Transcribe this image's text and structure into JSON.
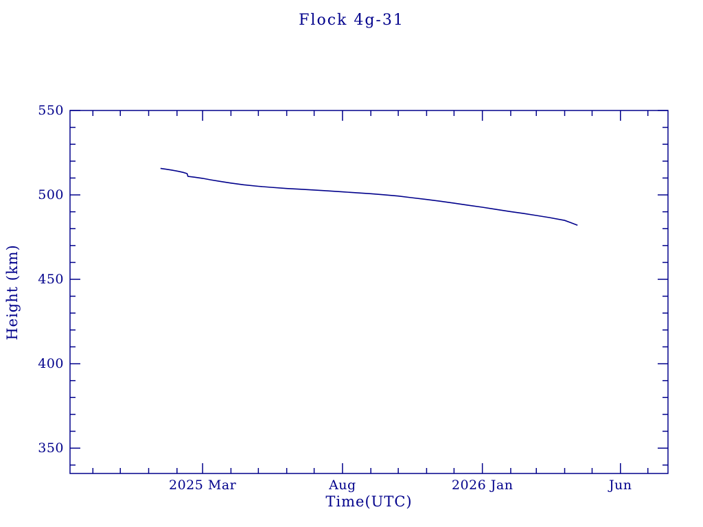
{
  "window": {
    "background_color": "#ffffff"
  },
  "chart_data": {
    "type": "line",
    "title": "Flock 4g-31",
    "xlabel": "Time(UTC)",
    "ylabel": "Height (km)",
    "line_color": "#00008b",
    "axis_color": "#00008b",
    "grid": false,
    "legend": null,
    "x_range": [
      "2024-10-07",
      "2026-07-23"
    ],
    "ylim": [
      335,
      550
    ],
    "y_major_ticks": [
      550,
      500,
      450,
      400,
      350
    ],
    "y_minor_step": 10,
    "x_major_ticks": [
      {
        "date": "2025-03-01",
        "label": "2025 Mar"
      },
      {
        "date": "2025-08-01",
        "label": "Aug"
      },
      {
        "date": "2026-01-01",
        "label": "2026 Jan"
      },
      {
        "date": "2026-06-01",
        "label": "Jun"
      }
    ],
    "x_minor_ticks": "monthly",
    "series": [
      {
        "name": "Flock 4g-31 height",
        "points": [
          [
            "2025-01-14",
            515.7
          ],
          [
            "2025-01-20",
            515.2
          ],
          [
            "2025-01-27",
            514.6
          ],
          [
            "2025-02-03",
            513.9
          ],
          [
            "2025-02-08",
            513.3
          ],
          [
            "2025-02-12",
            512.6
          ],
          [
            "2025-02-13",
            511.0
          ],
          [
            "2025-02-20",
            510.5
          ],
          [
            "2025-03-01",
            509.8
          ],
          [
            "2025-03-10",
            508.9
          ],
          [
            "2025-03-20",
            508.0
          ],
          [
            "2025-04-01",
            507.0
          ],
          [
            "2025-04-15",
            506.0
          ],
          [
            "2025-05-01",
            505.1
          ],
          [
            "2025-05-15",
            504.5
          ],
          [
            "2025-06-01",
            503.8
          ],
          [
            "2025-06-15",
            503.4
          ],
          [
            "2025-07-01",
            502.9
          ],
          [
            "2025-07-15",
            502.4
          ],
          [
            "2025-08-01",
            501.8
          ],
          [
            "2025-08-15",
            501.3
          ],
          [
            "2025-09-01",
            500.7
          ],
          [
            "2025-09-15",
            500.1
          ],
          [
            "2025-10-01",
            499.3
          ],
          [
            "2025-10-15",
            498.4
          ],
          [
            "2025-11-01",
            497.3
          ],
          [
            "2025-11-15",
            496.3
          ],
          [
            "2025-12-01",
            495.1
          ],
          [
            "2025-12-15",
            494.0
          ],
          [
            "2026-01-01",
            492.7
          ],
          [
            "2026-01-15",
            491.5
          ],
          [
            "2026-02-01",
            490.1
          ],
          [
            "2026-02-15",
            489.0
          ],
          [
            "2026-03-01",
            487.8
          ],
          [
            "2026-03-15",
            486.6
          ],
          [
            "2026-04-01",
            484.9
          ],
          [
            "2026-04-08",
            483.5
          ],
          [
            "2026-04-15",
            482.0
          ]
        ]
      }
    ]
  }
}
